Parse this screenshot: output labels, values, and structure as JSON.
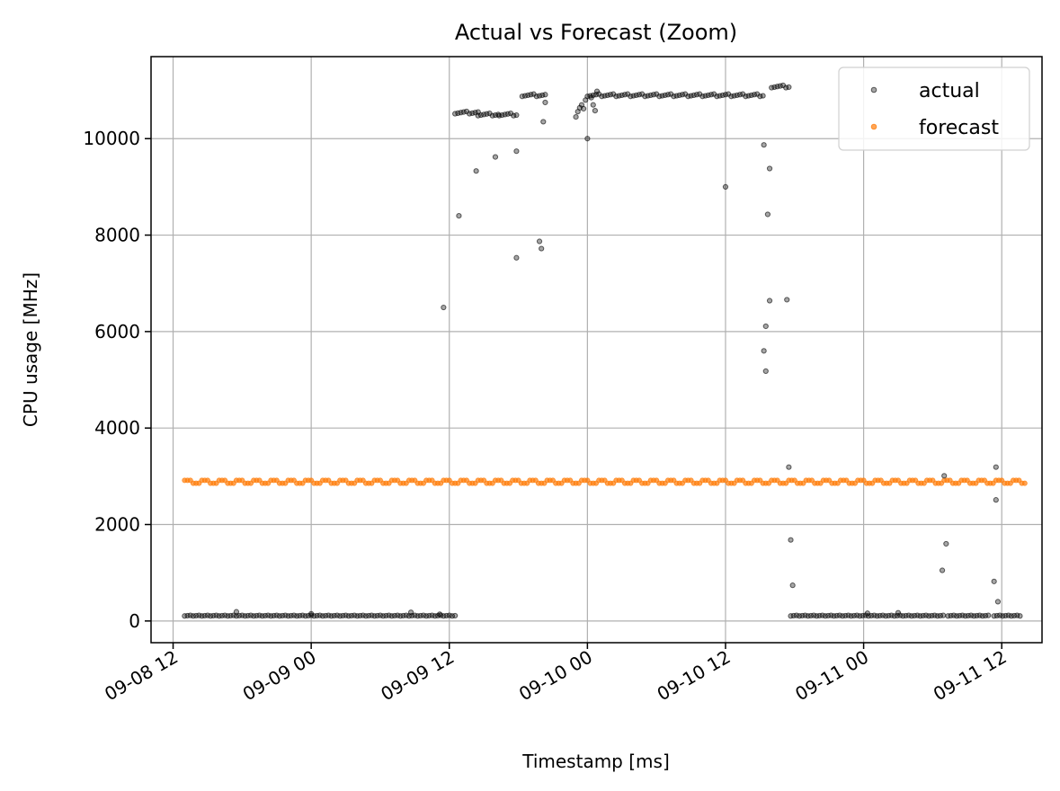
{
  "chart_data": {
    "type": "scatter",
    "title": "Actual vs Forecast (Zoom)",
    "xlabel": "Timestamp [ms]",
    "ylabel": "CPU usage [MHz]",
    "x_unit": "datetime",
    "xlim": [
      "2024-09-08 10:05",
      "2024-09-11 15:30"
    ],
    "ylim": [
      -450,
      11700
    ],
    "x_ticks": [
      {
        "value": "2024-09-08 12:00",
        "label": "09-08 12"
      },
      {
        "value": "2024-09-09 00:00",
        "label": "09-09 00"
      },
      {
        "value": "2024-09-09 12:00",
        "label": "09-09 12"
      },
      {
        "value": "2024-09-10 00:00",
        "label": "09-10 00"
      },
      {
        "value": "2024-09-10 12:00",
        "label": "09-10 12"
      },
      {
        "value": "2024-09-11 00:00",
        "label": "09-11 00"
      },
      {
        "value": "2024-09-11 12:00",
        "label": "09-11 12"
      }
    ],
    "y_ticks": [
      0,
      2000,
      4000,
      6000,
      8000,
      10000
    ],
    "grid": true,
    "legend_position": "top-right",
    "series": [
      {
        "name": "actual",
        "color": "#000000",
        "segments": [
          {
            "from": "2024-09-08 13:00",
            "to": "2024-09-09 12:40",
            "value": 110
          },
          {
            "from": "2024-09-09 12:30",
            "to": "2024-09-09 14:30",
            "value": 10540
          },
          {
            "from": "2024-09-09 14:30",
            "to": "2024-09-09 16:20",
            "value": 10500
          },
          {
            "from": "2024-09-09 16:20",
            "to": "2024-09-09 18:00",
            "value": 10500
          },
          {
            "from": "2024-09-09 18:20",
            "to": "2024-09-09 20:30",
            "value": 10900
          },
          {
            "from": "2024-09-10 00:00",
            "to": "2024-09-10 15:20",
            "value": 10900
          },
          {
            "from": "2024-09-10 16:00",
            "to": "2024-09-10 17:30",
            "value": 11080
          },
          {
            "from": "2024-09-10 17:40",
            "to": "2024-09-11 07:00",
            "value": 110
          },
          {
            "from": "2024-09-11 07:20",
            "to": "2024-09-11 11:00",
            "value": 110
          },
          {
            "from": "2024-09-11 11:20",
            "to": "2024-09-11 13:40",
            "value": 110
          }
        ],
        "points": [
          [
            "2024-09-08 17:30",
            190
          ],
          [
            "2024-09-09 00:00",
            150
          ],
          [
            "2024-09-09 08:40",
            180
          ],
          [
            "2024-09-09 11:10",
            140
          ],
          [
            "2024-09-09 11:30",
            6500
          ],
          [
            "2024-09-09 12:50",
            8400
          ],
          [
            "2024-09-09 14:20",
            9330
          ],
          [
            "2024-09-09 16:00",
            9620
          ],
          [
            "2024-09-09 17:50",
            7530
          ],
          [
            "2024-09-09 17:50",
            9740
          ],
          [
            "2024-09-09 19:50",
            7870
          ],
          [
            "2024-09-09 20:00",
            7720
          ],
          [
            "2024-09-09 20:10",
            10350
          ],
          [
            "2024-09-09 20:20",
            10750
          ],
          [
            "2024-09-09 23:00",
            10450
          ],
          [
            "2024-09-09 23:10",
            10560
          ],
          [
            "2024-09-09 23:20",
            10640
          ],
          [
            "2024-09-09 23:30",
            10700
          ],
          [
            "2024-09-09 23:40",
            10620
          ],
          [
            "2024-09-09 23:50",
            10800
          ],
          [
            "2024-09-10 00:00",
            10000
          ],
          [
            "2024-09-10 00:20",
            10850
          ],
          [
            "2024-09-10 00:30",
            10700
          ],
          [
            "2024-09-10 00:40",
            10580
          ],
          [
            "2024-09-10 00:50",
            10980
          ],
          [
            "2024-09-10 12:00",
            9000
          ],
          [
            "2024-09-10 15:20",
            9870
          ],
          [
            "2024-09-10 15:50",
            9380
          ],
          [
            "2024-09-10 15:40",
            8430
          ],
          [
            "2024-09-10 15:50",
            6640
          ],
          [
            "2024-09-10 15:30",
            6110
          ],
          [
            "2024-09-10 15:20",
            5600
          ],
          [
            "2024-09-10 15:30",
            5180
          ],
          [
            "2024-09-10 17:20",
            6660
          ],
          [
            "2024-09-10 17:30",
            3190
          ],
          [
            "2024-09-10 17:40",
            1680
          ],
          [
            "2024-09-10 17:50",
            740
          ],
          [
            "2024-09-11 00:20",
            160
          ],
          [
            "2024-09-11 03:00",
            170
          ],
          [
            "2024-09-11 07:00",
            3010
          ],
          [
            "2024-09-11 07:10",
            1600
          ],
          [
            "2024-09-11 06:50",
            1050
          ],
          [
            "2024-09-11 11:30",
            3190
          ],
          [
            "2024-09-11 11:30",
            2510
          ],
          [
            "2024-09-11 11:20",
            820
          ],
          [
            "2024-09-11 11:40",
            400
          ]
        ]
      },
      {
        "name": "forecast",
        "color": "#ff7f0e",
        "from": "2024-09-08 13:00",
        "to": "2024-09-11 14:00",
        "value": 2880
      }
    ]
  }
}
